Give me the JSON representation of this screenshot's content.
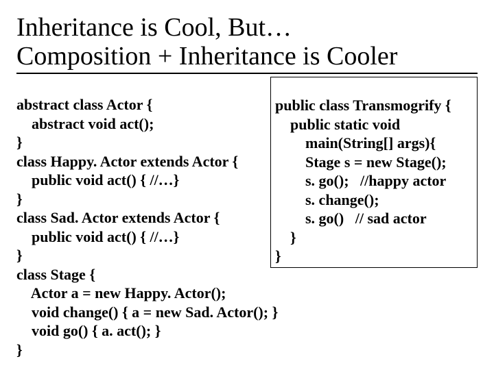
{
  "title_line1": "Inheritance is Cool, But…",
  "title_line2": "Composition + Inheritance is Cooler",
  "left": {
    "l1": "abstract class Actor {",
    "l2": "    abstract void act();",
    "l3": "}",
    "l4": "class Happy. Actor extends Actor {",
    "l5": "    public void act() { //…}",
    "l6": "}",
    "l7": "class Sad. Actor extends Actor {",
    "l8": "    public void act() { //…}",
    "l9": "}",
    "l10": "class Stage {",
    "l11": "    Actor a = new Happy. Actor();",
    "l12": "    void change() { a = new Sad. Actor(); }",
    "l13": "    void go() { a. act(); }",
    "l14": "}"
  },
  "right": {
    "r1": "public class Transmogrify {",
    "r2": "    public static void",
    "r3": "        main(String[] args){",
    "r4": "        Stage s = new Stage();",
    "r5": "        s. go();   //happy actor",
    "r6": "        s. change();",
    "r7": "        s. go()   // sad actor",
    "r8": "    }",
    "r9": "}"
  },
  "colors": {
    "text": "#000000",
    "background": "#ffffff",
    "border": "#000000"
  },
  "fontsizes": {
    "title": 38,
    "body": 22
  }
}
